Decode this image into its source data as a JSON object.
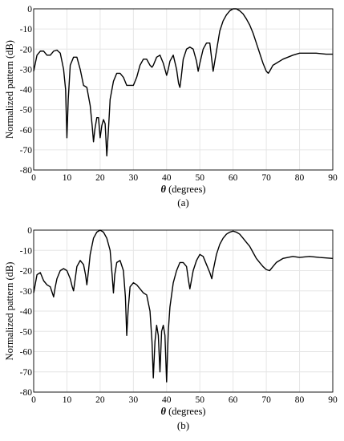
{
  "chart_data": [
    {
      "type": "line",
      "panel_label": "(a)",
      "title": "",
      "xlabel_symbol": "θ",
      "xlabel_text": " (degrees)",
      "ylabel": "Normalized pattern  (dB)",
      "xlim": [
        0,
        90
      ],
      "ylim": [
        -80,
        0
      ],
      "xticks": [
        0,
        10,
        20,
        30,
        40,
        50,
        60,
        70,
        80,
        90
      ],
      "yticks": [
        0,
        -10,
        -20,
        -30,
        -40,
        -50,
        -60,
        -70,
        -80
      ],
      "grid": true,
      "colors": {
        "line": "#000000",
        "grid": "#e6e6e6"
      },
      "series": [
        {
          "x": [
            0,
            1,
            2,
            3,
            4,
            5,
            6,
            7,
            8,
            9,
            9.6,
            10,
            10.4,
            11,
            12,
            13,
            14,
            15,
            16,
            17,
            17.6,
            18,
            18.4,
            19,
            19.5,
            20,
            20.5,
            21,
            21.5,
            22,
            22.5,
            23,
            24,
            25,
            26,
            27,
            28,
            29,
            30,
            31,
            32,
            33,
            34,
            35,
            35.6,
            36,
            37,
            38,
            39,
            40,
            40.5,
            41,
            42,
            43,
            43.6,
            44,
            44.4,
            45,
            46,
            47,
            48,
            49,
            49.5,
            50,
            51,
            52,
            53,
            54,
            55,
            56,
            57,
            58,
            59,
            60,
            61,
            62,
            63,
            64,
            65,
            66,
            67,
            68,
            69,
            70,
            70.6,
            71,
            72,
            73,
            75,
            78,
            80,
            82,
            85,
            88,
            90
          ],
          "y": [
            -31,
            -23,
            -21,
            -21,
            -23,
            -23,
            -21,
            -20.5,
            -22,
            -30,
            -40,
            -64,
            -45,
            -28,
            -24,
            -24,
            -30,
            -38,
            -39,
            -48,
            -58,
            -66,
            -60,
            -54,
            -54,
            -64,
            -58,
            -55,
            -57,
            -73,
            -60,
            -45,
            -36,
            -32,
            -32,
            -34,
            -38,
            -38,
            -38,
            -34,
            -28,
            -25,
            -25,
            -28,
            -29,
            -28,
            -24,
            -23,
            -27,
            -33,
            -30,
            -26,
            -23,
            -30,
            -37,
            -39,
            -34,
            -25,
            -20,
            -19,
            -20,
            -26,
            -31,
            -27,
            -20,
            -17,
            -17,
            -31,
            -21,
            -11,
            -6,
            -3,
            -1,
            0,
            0,
            -1,
            -2.5,
            -5,
            -8,
            -12,
            -17,
            -22,
            -27,
            -31,
            -32,
            -31,
            -28,
            -27,
            -25,
            -23,
            -22,
            -22,
            -22,
            -22.5,
            -22.5
          ]
        }
      ]
    },
    {
      "type": "line",
      "panel_label": "(b)",
      "title": "",
      "xlabel_symbol": "θ",
      "xlabel_text": " (degrees)",
      "ylabel": "Normalized pattern  (dB)",
      "xlim": [
        0,
        90
      ],
      "ylim": [
        -80,
        0
      ],
      "xticks": [
        0,
        10,
        20,
        30,
        40,
        50,
        60,
        70,
        80,
        90
      ],
      "yticks": [
        0,
        -10,
        -20,
        -30,
        -40,
        -50,
        -60,
        -70,
        -80
      ],
      "grid": true,
      "colors": {
        "line": "#000000",
        "grid": "#e6e6e6"
      },
      "series": [
        {
          "x": [
            0,
            1,
            2,
            3,
            4,
            5,
            5.6,
            6,
            6.5,
            7,
            8,
            9,
            10,
            11,
            11.6,
            12,
            12.5,
            13,
            14,
            15,
            15.6,
            16,
            16.5,
            17,
            18,
            19,
            20,
            21,
            22,
            23,
            23.6,
            24,
            24.4,
            25,
            26,
            27,
            27.6,
            28,
            28.4,
            29,
            30,
            31,
            32,
            33,
            34,
            35,
            35.6,
            36,
            36.5,
            37,
            37.5,
            38,
            38.5,
            39,
            39.5,
            40,
            40.5,
            41,
            42,
            43,
            44,
            45,
            46,
            46.6,
            47,
            48,
            49,
            50,
            51,
            52,
            53,
            53.6,
            54,
            55,
            56,
            57,
            58,
            59,
            60,
            61,
            62,
            63,
            64,
            65,
            66,
            67,
            68,
            69,
            70,
            71,
            72,
            73,
            75,
            78,
            80,
            83,
            86,
            90
          ],
          "y": [
            -31,
            -22,
            -21,
            -25,
            -27,
            -28,
            -31,
            -33,
            -28,
            -24,
            -20,
            -19,
            -20,
            -24,
            -28,
            -30,
            -24,
            -18,
            -15,
            -17,
            -22,
            -27,
            -20,
            -12,
            -4,
            -1,
            0,
            -1,
            -4,
            -10,
            -22,
            -31,
            -22,
            -16,
            -15,
            -20,
            -33,
            -52,
            -40,
            -28,
            -26,
            -27,
            -29,
            -31,
            -32,
            -40,
            -55,
            -73,
            -55,
            -47,
            -52,
            -70,
            -50,
            -47,
            -52,
            -75,
            -50,
            -38,
            -26,
            -20,
            -16,
            -16,
            -18,
            -25,
            -29,
            -20,
            -15,
            -12,
            -13,
            -17,
            -21,
            -24,
            -20,
            -12,
            -7,
            -4,
            -2,
            -1,
            -0.5,
            -1,
            -2,
            -4,
            -6,
            -8,
            -11,
            -14,
            -16,
            -18,
            -19.5,
            -20,
            -18,
            -16,
            -14,
            -13,
            -13.5,
            -13,
            -13.5,
            -14
          ]
        }
      ]
    }
  ]
}
